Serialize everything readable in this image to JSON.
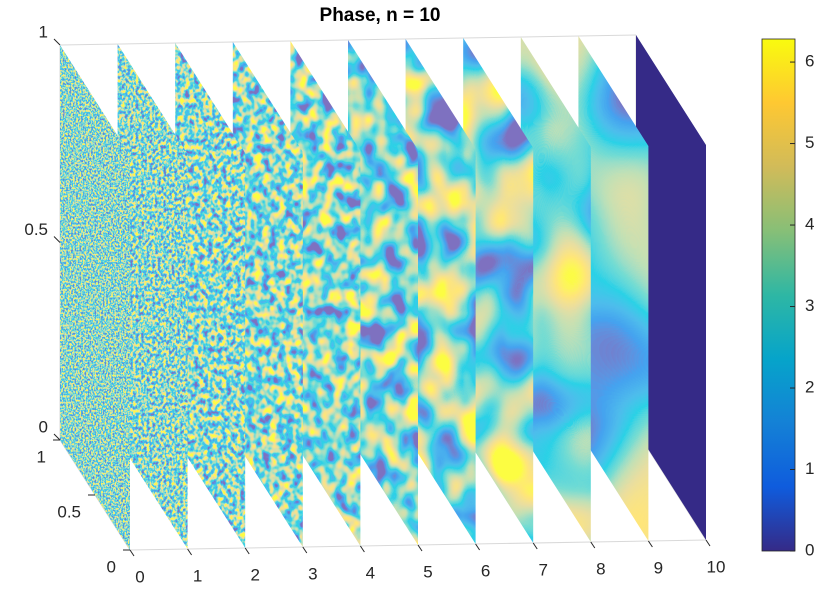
{
  "chart_data": {
    "type": "slice",
    "title": "Phase, n = 10",
    "slices": [
      0,
      1,
      2,
      3,
      4,
      5,
      6,
      7,
      8,
      9,
      10
    ],
    "xlim": [
      0,
      10
    ],
    "xticks": [
      0,
      1,
      2,
      3,
      4,
      5,
      6,
      7,
      8,
      9,
      10
    ],
    "ylim": [
      0,
      1
    ],
    "yticks": [
      0,
      0.5,
      1
    ],
    "zlim": [
      0,
      1
    ],
    "zticks": [
      0,
      0.5,
      1
    ],
    "clim": [
      0,
      6.283
    ],
    "cticks": [
      0,
      1,
      2,
      3,
      4,
      5,
      6
    ],
    "colormap": [
      "#352a87",
      "#0f5cdd",
      "#1481d6",
      "#06a4ca",
      "#2eb7a4",
      "#87bf77",
      "#d1bb59",
      "#fec832",
      "#f9fb0e"
    ]
  }
}
